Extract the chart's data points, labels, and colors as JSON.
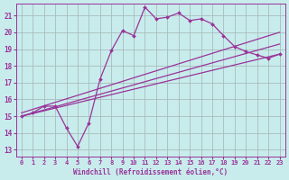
{
  "xlabel": "Windchill (Refroidissement éolien,°C)",
  "bg_color": "#c8ecec",
  "grid_color": "#aabbbb",
  "line_color": "#993399",
  "xlim": [
    -0.5,
    23.5
  ],
  "ylim": [
    12.6,
    21.7
  ],
  "yticks": [
    13,
    14,
    15,
    16,
    17,
    18,
    19,
    20,
    21
  ],
  "xticks": [
    0,
    1,
    2,
    3,
    4,
    5,
    6,
    7,
    8,
    9,
    10,
    11,
    12,
    13,
    14,
    15,
    16,
    17,
    18,
    19,
    20,
    21,
    22,
    23
  ],
  "wiggly_x": [
    0,
    1,
    2,
    3,
    4,
    5,
    6,
    7,
    8,
    9,
    10,
    11,
    12,
    13,
    14,
    15,
    16,
    17,
    18,
    19,
    20,
    21,
    22,
    23
  ],
  "wiggly_y": [
    15.0,
    15.2,
    15.6,
    15.6,
    14.3,
    13.2,
    14.6,
    17.2,
    18.9,
    20.1,
    19.8,
    21.5,
    20.8,
    20.9,
    21.15,
    20.7,
    20.8,
    20.5,
    19.8,
    19.15,
    18.85,
    18.65,
    18.45,
    18.7
  ],
  "line1_x": [
    0,
    23
  ],
  "line1_y": [
    15.0,
    18.7
  ],
  "line2_x": [
    0,
    23
  ],
  "line2_y": [
    15.0,
    19.3
  ],
  "line3_x": [
    0,
    23
  ],
  "line3_y": [
    15.2,
    20.0
  ]
}
